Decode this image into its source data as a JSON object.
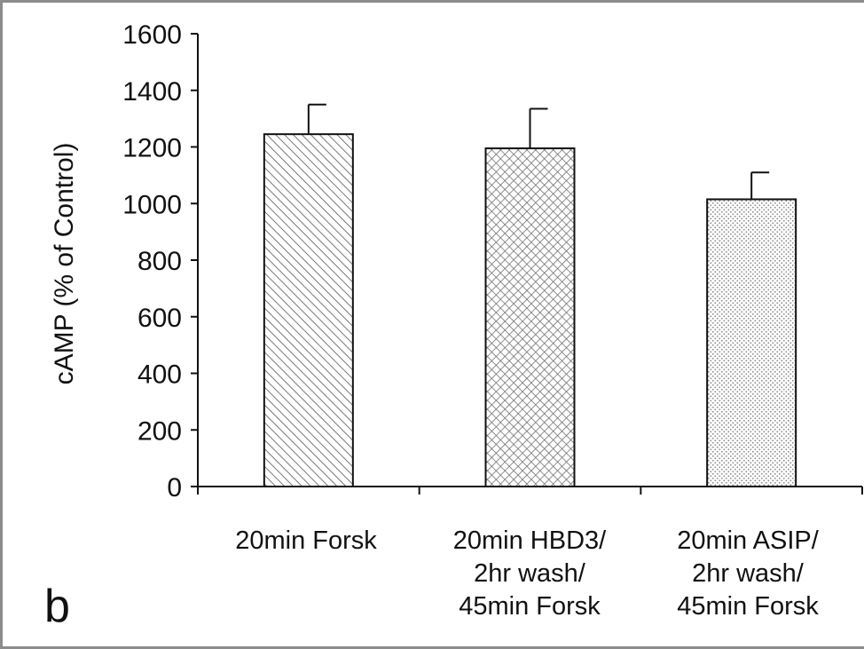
{
  "panel_label": "b",
  "chart_data": {
    "type": "bar",
    "title": "",
    "xlabel": "",
    "ylabel": "cAMP (% of Control)",
    "ylim": [
      0,
      1600
    ],
    "yticks": [
      0,
      200,
      400,
      600,
      800,
      1000,
      1200,
      1400,
      1600
    ],
    "categories": [
      [
        "20min Forsk"
      ],
      [
        "20min HBD3/",
        "2hr wash/",
        "45min  Forsk"
      ],
      [
        "20min ASIP/",
        "2hr wash/",
        "45min Forsk"
      ]
    ],
    "values": [
      1245,
      1195,
      1015
    ],
    "error_upper": [
      105,
      140,
      95
    ],
    "bar_patterns": [
      "diagonal-hatch",
      "crosshatch",
      "dots"
    ],
    "grid": false,
    "legend": "none"
  }
}
